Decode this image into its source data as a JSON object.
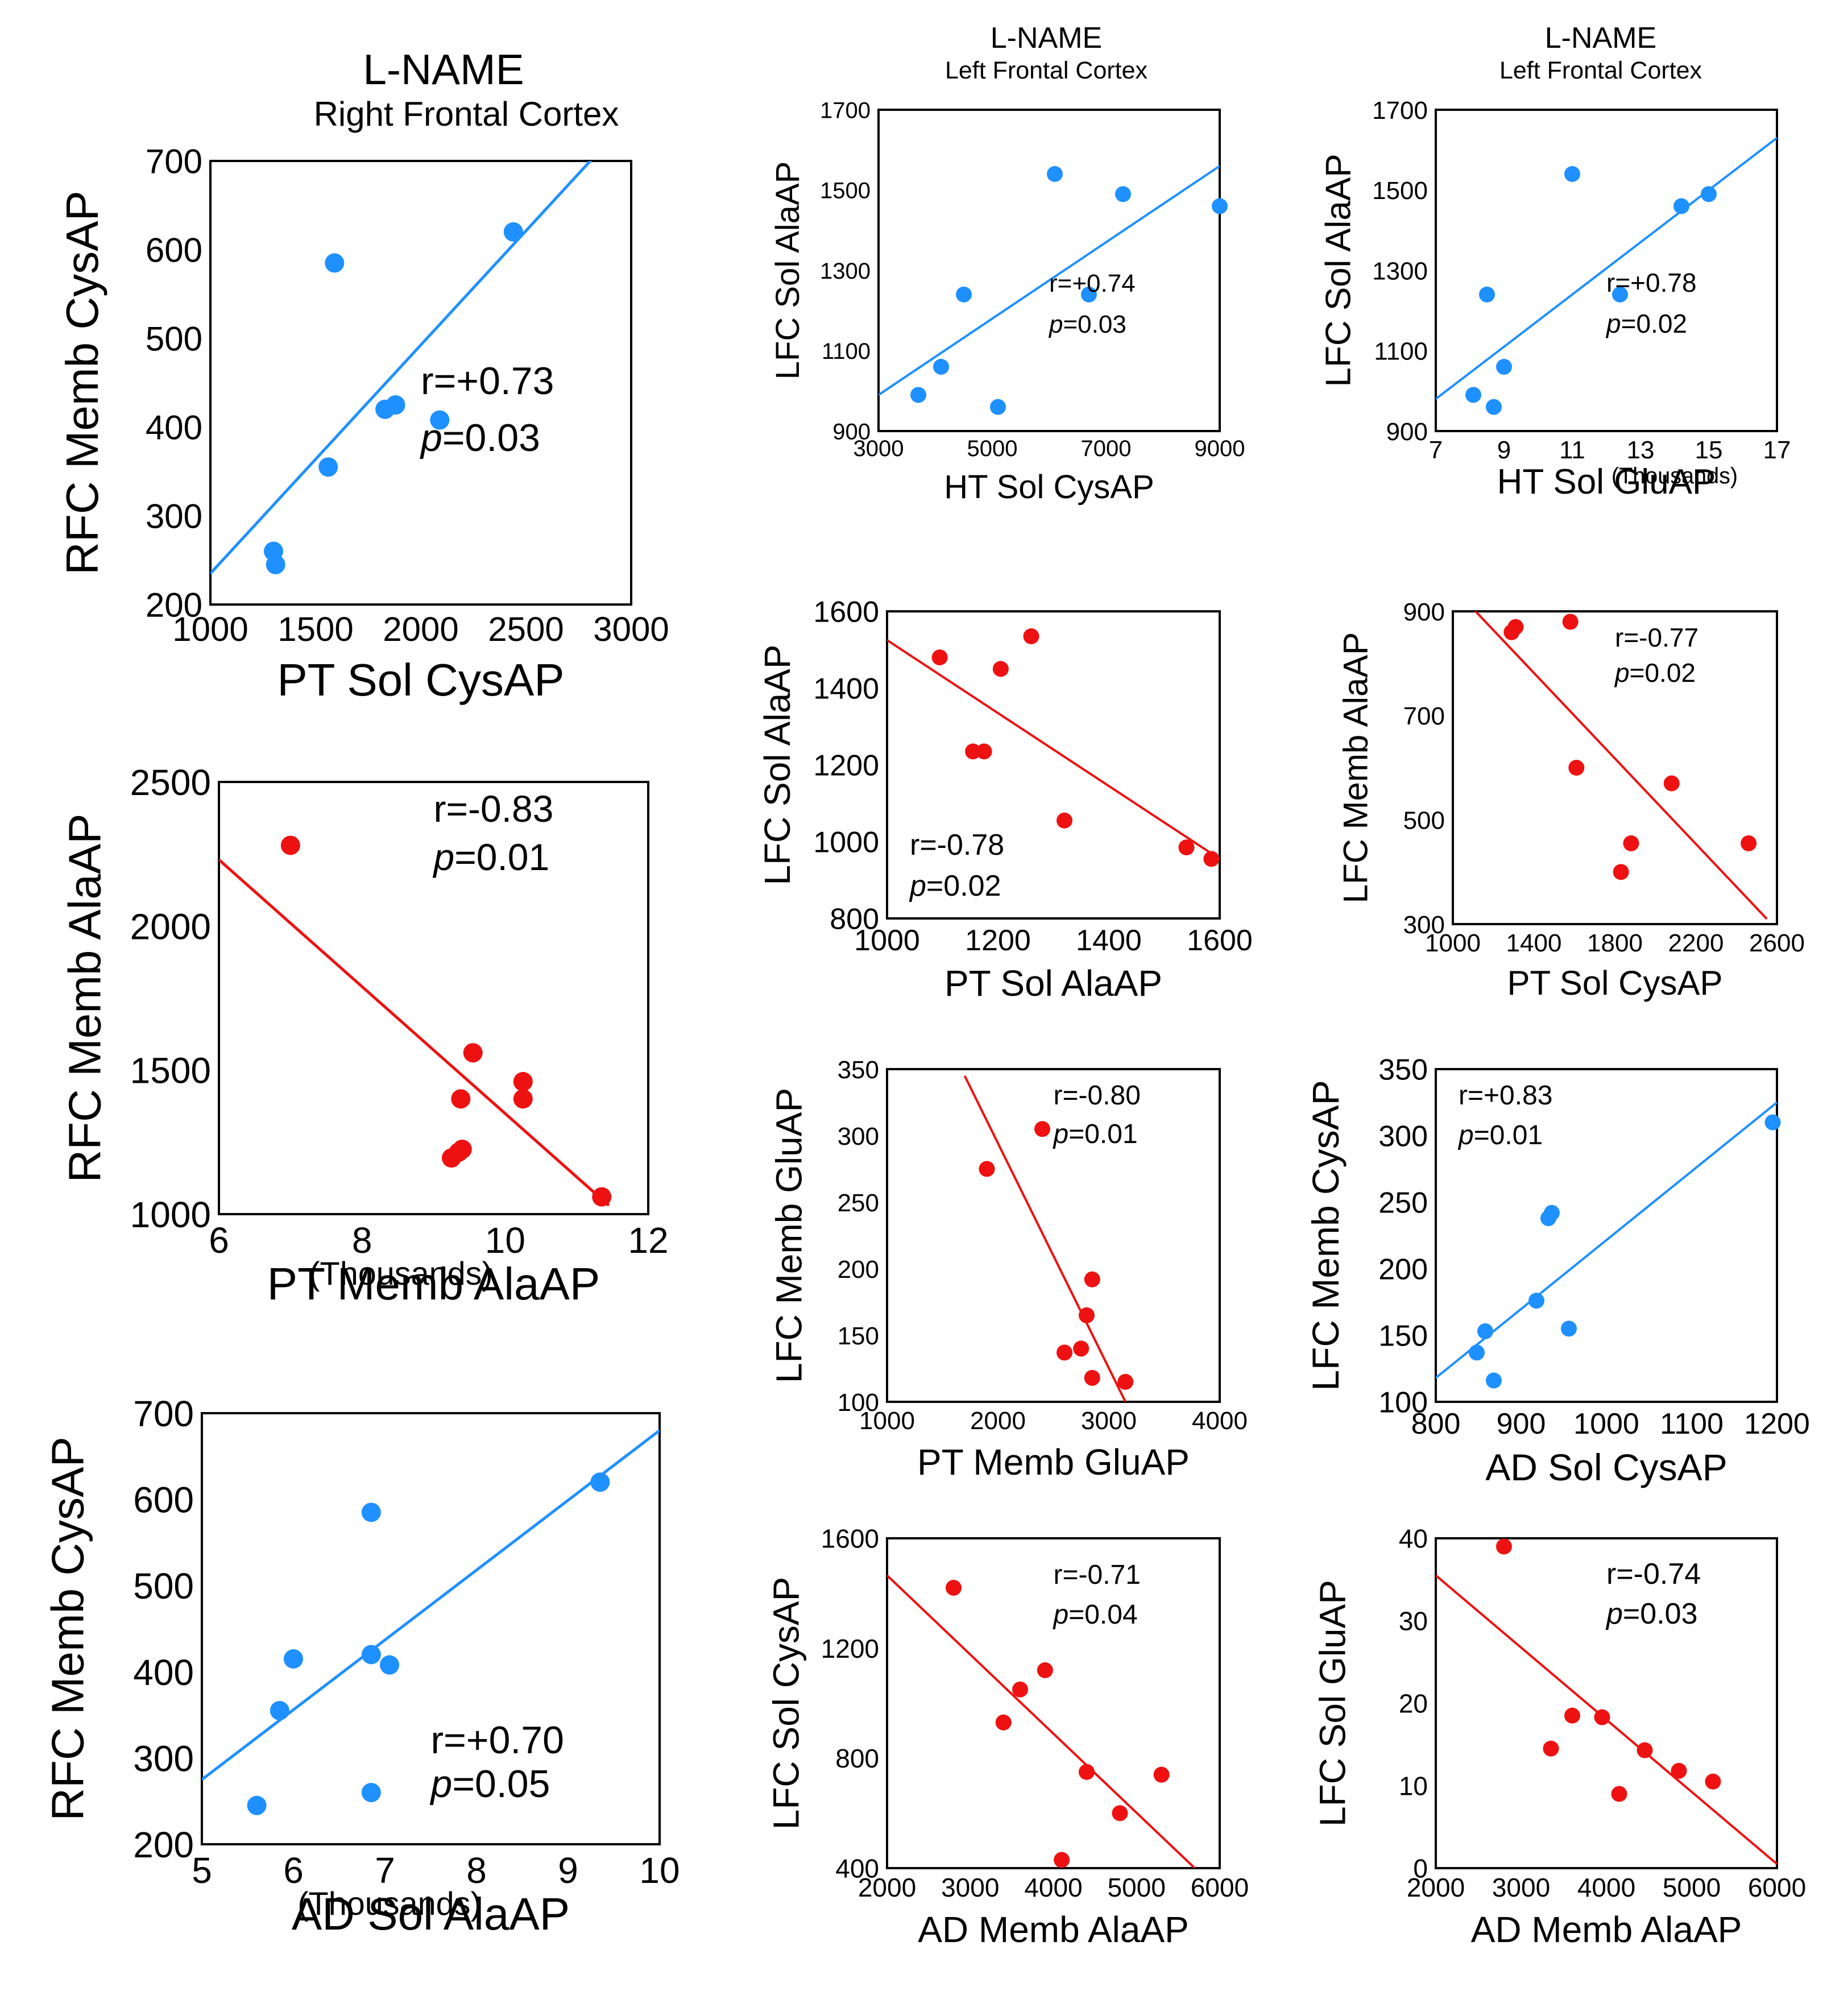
{
  "headers": [
    {
      "title": "L-NAME",
      "subtitle": "Right Frontal Cortex"
    },
    {
      "title": "L-NAME",
      "subtitle": "Left Frontal Cortex"
    },
    {
      "title": "L-NAME",
      "subtitle": "Left Frontal Cortex"
    }
  ],
  "colors": {
    "blue": "#1e90ff",
    "red": "#ee1111"
  },
  "chart_data": [
    {
      "id": "c1",
      "type": "scatter",
      "color": "blue",
      "xlabel": "PT Sol CysAP",
      "ylabel": "RFC Memb CysAP",
      "xnote": "",
      "xlim": [
        1000,
        3000
      ],
      "ylim": [
        200,
        700
      ],
      "xticks": [
        1000,
        1500,
        2000,
        2500,
        3000
      ],
      "xticklabels": [
        "1000",
        "1500",
        "2000",
        "2500",
        "3000"
      ],
      "yticks": [
        200,
        300,
        400,
        500,
        600,
        700
      ],
      "yticklabels": [
        "200",
        "300",
        "400",
        "500",
        "600",
        "700"
      ],
      "points": [
        [
          1300,
          260
        ],
        [
          1310,
          245
        ],
        [
          1560,
          355
        ],
        [
          1590,
          585
        ],
        [
          1830,
          420
        ],
        [
          1880,
          425
        ],
        [
          2090,
          408
        ],
        [
          2440,
          620
        ]
      ],
      "fit": [
        [
          1000,
          235
        ],
        [
          3000,
          750
        ]
      ],
      "stat_r": "r=+0.73",
      "stat_p_sym": "p",
      "stat_p_val": "=0.03"
    },
    {
      "id": "c2",
      "type": "scatter",
      "color": "blue",
      "xlabel": "HT Sol CysAP",
      "ylabel": "LFC Sol AlaAP",
      "xnote": "",
      "xlim": [
        3000,
        9000
      ],
      "ylim": [
        900,
        1700
      ],
      "xticks": [
        3000,
        5000,
        7000,
        9000
      ],
      "xticklabels": [
        "3000",
        "5000",
        "7000",
        "9000"
      ],
      "yticks": [
        900,
        1100,
        1300,
        1500,
        1700
      ],
      "yticklabels": [
        "900",
        "1100",
        "1300",
        "1500",
        "1700"
      ],
      "points": [
        [
          3700,
          990
        ],
        [
          4100,
          1060
        ],
        [
          4500,
          1240
        ],
        [
          5100,
          960
        ],
        [
          6100,
          1540
        ],
        [
          6700,
          1240
        ],
        [
          7300,
          1490
        ],
        [
          9000,
          1460
        ]
      ],
      "fit": [
        [
          3000,
          990
        ],
        [
          9000,
          1560
        ]
      ],
      "stat_r": "r=+0.74",
      "stat_p_sym": "p",
      "stat_p_val": "=0.03"
    },
    {
      "id": "c3",
      "type": "scatter",
      "color": "blue",
      "xlabel": "HT Sol GluAP",
      "ylabel": "LFC Sol AlaAP",
      "xnote": "(Thousands)",
      "xlim": [
        7,
        17
      ],
      "ylim": [
        900,
        1700
      ],
      "xticks": [
        7,
        9,
        11,
        13,
        15,
        17
      ],
      "xticklabels": [
        "7",
        "9",
        "11",
        "13",
        "15",
        "17"
      ],
      "yticks": [
        900,
        1100,
        1300,
        1500,
        1700
      ],
      "yticklabels": [
        "900",
        "1100",
        "1300",
        "1500",
        "1700"
      ],
      "points": [
        [
          8.1,
          990
        ],
        [
          8.5,
          1240
        ],
        [
          8.7,
          960
        ],
        [
          9.0,
          1060
        ],
        [
          11.0,
          1540
        ],
        [
          12.4,
          1240
        ],
        [
          14.2,
          1460
        ],
        [
          15.0,
          1490
        ]
      ],
      "fit": [
        [
          7,
          980
        ],
        [
          17,
          1630
        ]
      ],
      "stat_r": "r=+0.78",
      "stat_p_sym": "p",
      "stat_p_val": "=0.02"
    },
    {
      "id": "c4",
      "type": "scatter",
      "color": "red",
      "xlabel": "PT Sol AlaAP",
      "ylabel": "LFC Sol AlaAP",
      "xnote": "",
      "xlim": [
        1000,
        1600
      ],
      "ylim": [
        800,
        1600
      ],
      "xticks": [
        1000,
        1200,
        1400,
        1600
      ],
      "xticklabels": [
        "1000",
        "1200",
        "1400",
        "1600"
      ],
      "yticks": [
        800,
        1000,
        1200,
        1400,
        1600
      ],
      "yticklabels": [
        "800",
        "1000",
        "1200",
        "1400",
        "1600"
      ],
      "points": [
        [
          1095,
          1480
        ],
        [
          1155,
          1235
        ],
        [
          1175,
          1235
        ],
        [
          1205,
          1450
        ],
        [
          1260,
          1535
        ],
        [
          1320,
          1055
        ],
        [
          1540,
          985
        ],
        [
          1585,
          955
        ]
      ],
      "fit": [
        [
          1000,
          1525
        ],
        [
          1600,
          955
        ]
      ],
      "stat_r": "r=-0.78",
      "stat_p_sym": "p",
      "stat_p_val": "=0.02"
    },
    {
      "id": "c5",
      "type": "scatter",
      "color": "red",
      "xlabel": "PT Sol CysAP",
      "ylabel": "LFC Memb AlaAP",
      "xnote": "",
      "xlim": [
        1000,
        2600
      ],
      "ylim": [
        300,
        900
      ],
      "xticks": [
        1000,
        1400,
        1800,
        2200,
        2600
      ],
      "xticklabels": [
        "1000",
        "1400",
        "1800",
        "2200",
        "2600"
      ],
      "yticks": [
        300,
        500,
        700,
        900
      ],
      "yticklabels": [
        "300",
        "500",
        "700",
        "900"
      ],
      "points": [
        [
          1290,
          860
        ],
        [
          1310,
          870
        ],
        [
          1580,
          880
        ],
        [
          1610,
          600
        ],
        [
          1830,
          400
        ],
        [
          1880,
          455
        ],
        [
          2080,
          570
        ],
        [
          2460,
          455
        ]
      ],
      "fit": [
        [
          1100,
          905
        ],
        [
          2550,
          310
        ]
      ],
      "stat_r": "r=-0.77",
      "stat_p_sym": "p",
      "stat_p_val": "=0.02"
    },
    {
      "id": "c6",
      "type": "scatter",
      "color": "red",
      "xlabel": "PT Memb GluAP",
      "ylabel": "LFC Memb GluAP",
      "xnote": "",
      "xlim": [
        1000,
        4000
      ],
      "ylim": [
        100,
        350
      ],
      "xticks": [
        1000,
        2000,
        3000,
        4000
      ],
      "xticklabels": [
        "1000",
        "2000",
        "3000",
        "4000"
      ],
      "yticks": [
        100,
        150,
        200,
        250,
        300,
        350
      ],
      "yticklabels": [
        "100",
        "150",
        "200",
        "250",
        "300",
        "350"
      ],
      "points": [
        [
          1900,
          275
        ],
        [
          2400,
          305
        ],
        [
          2600,
          137
        ],
        [
          2750,
          140
        ],
        [
          2800,
          165
        ],
        [
          2850,
          192
        ],
        [
          2850,
          118
        ],
        [
          3150,
          115
        ]
      ],
      "fit": [
        [
          1700,
          345
        ],
        [
          3150,
          100
        ]
      ],
      "stat_r": "r=-0.80",
      "stat_p_sym": "p",
      "stat_p_val": "=0.01"
    },
    {
      "id": "c7",
      "type": "scatter",
      "color": "blue",
      "xlabel": "AD Sol CysAP",
      "ylabel": "LFC Memb CysAP",
      "xnote": "",
      "xlim": [
        800,
        1200
      ],
      "ylim": [
        100,
        350
      ],
      "xticks": [
        800,
        900,
        1000,
        1100,
        1200
      ],
      "xticklabels": [
        "800",
        "900",
        "1000",
        "1100",
        "1200"
      ],
      "yticks": [
        100,
        150,
        200,
        250,
        300,
        350
      ],
      "yticklabels": [
        "100",
        "150",
        "200",
        "250",
        "300",
        "350"
      ],
      "points": [
        [
          848,
          137
        ],
        [
          858,
          153
        ],
        [
          868,
          116
        ],
        [
          918,
          176
        ],
        [
          932,
          238
        ],
        [
          936,
          242
        ],
        [
          956,
          155
        ],
        [
          1195,
          310
        ]
      ],
      "fit": [
        [
          800,
          118
        ],
        [
          1200,
          325
        ]
      ],
      "stat_r": "r=+0.83",
      "stat_p_sym": "p",
      "stat_p_val": "=0.01"
    },
    {
      "id": "c8",
      "type": "scatter",
      "color": "red",
      "xlabel": "PT Memb AlaAP",
      "ylabel": "RFC Memb AlaAP",
      "xnote": "(Thousands)",
      "xlim": [
        6,
        12
      ],
      "ylim": [
        1000,
        2500
      ],
      "xticks": [
        6,
        8,
        10,
        12
      ],
      "xticklabels": [
        "6",
        "8",
        "10",
        "12"
      ],
      "yticks": [
        1000,
        1500,
        2000,
        2500
      ],
      "yticklabels": [
        "1000",
        "1500",
        "2000",
        "2500"
      ],
      "points": [
        [
          7.0,
          2280
        ],
        [
          9.25,
          1195
        ],
        [
          9.35,
          1215
        ],
        [
          9.4,
          1225
        ],
        [
          9.38,
          1400
        ],
        [
          9.55,
          1560
        ],
        [
          10.25,
          1460
        ],
        [
          10.25,
          1400
        ],
        [
          11.35,
          1060
        ]
      ],
      "fit": [
        [
          6,
          2230
        ],
        [
          11.45,
          1030
        ]
      ],
      "stat_r": "r=-0.83",
      "stat_p_sym": "p",
      "stat_p_val": "=0.01"
    },
    {
      "id": "c9",
      "type": "scatter",
      "color": "blue",
      "xlabel": "AD Sol AlaAP",
      "ylabel": "RFC Memb CysAP",
      "xnote": "(Thousands)",
      "xlim": [
        5,
        10
      ],
      "ylim": [
        200,
        700
      ],
      "xticks": [
        5,
        6,
        7,
        8,
        9,
        10
      ],
      "xticklabels": [
        "5",
        "6",
        "7",
        "8",
        "9",
        "10"
      ],
      "yticks": [
        200,
        300,
        400,
        500,
        600,
        700
      ],
      "yticklabels": [
        "200",
        "300",
        "400",
        "500",
        "600",
        "700"
      ],
      "points": [
        [
          5.6,
          245
        ],
        [
          5.85,
          355
        ],
        [
          6.0,
          415
        ],
        [
          6.85,
          585
        ],
        [
          6.85,
          420
        ],
        [
          6.85,
          260
        ],
        [
          7.05,
          408
        ],
        [
          9.35,
          620
        ]
      ],
      "fit": [
        [
          5,
          275
        ],
        [
          10,
          680
        ]
      ],
      "stat_r": "r=+0.70",
      "stat_p_sym": "p",
      "stat_p_val": "=0.05"
    },
    {
      "id": "c10",
      "type": "scatter",
      "color": "red",
      "xlabel": "AD Memb AlaAP",
      "ylabel": "LFC Sol CysAP",
      "xnote": "",
      "xlim": [
        2000,
        6000
      ],
      "ylim": [
        400,
        1600
      ],
      "xticks": [
        2000,
        3000,
        4000,
        5000,
        6000
      ],
      "xticklabels": [
        "2000",
        "3000",
        "4000",
        "5000",
        "6000"
      ],
      "yticks": [
        400,
        800,
        1200,
        1600
      ],
      "yticklabels": [
        "400",
        "800",
        "1200",
        "1600"
      ],
      "points": [
        [
          2800,
          1420
        ],
        [
          3400,
          930
        ],
        [
          3600,
          1050
        ],
        [
          3900,
          1120
        ],
        [
          4100,
          430
        ],
        [
          4400,
          750
        ],
        [
          4800,
          600
        ],
        [
          5300,
          740
        ]
      ],
      "fit": [
        [
          2000,
          1465
        ],
        [
          5700,
          400
        ]
      ],
      "stat_r": "r=-0.71",
      "stat_p_sym": "p",
      "stat_p_val": "=0.04"
    },
    {
      "id": "c11",
      "type": "scatter",
      "color": "red",
      "xlabel": "AD Memb AlaAP",
      "ylabel": "LFC Sol GluAP",
      "xnote": "",
      "xlim": [
        2000,
        6000
      ],
      "ylim": [
        0,
        40
      ],
      "xticks": [
        2000,
        3000,
        4000,
        5000,
        6000
      ],
      "xticklabels": [
        "2000",
        "3000",
        "4000",
        "5000",
        "6000"
      ],
      "yticks": [
        0,
        10,
        20,
        30,
        40
      ],
      "yticklabels": [
        "0",
        "10",
        "20",
        "30",
        "40"
      ],
      "points": [
        [
          2800,
          39
        ],
        [
          3350,
          14.5
        ],
        [
          3600,
          18.5
        ],
        [
          3950,
          18.3
        ],
        [
          4150,
          9.0
        ],
        [
          4450,
          14.3
        ],
        [
          4850,
          11.8
        ],
        [
          5250,
          10.5
        ]
      ],
      "fit": [
        [
          2000,
          35.5
        ],
        [
          6000,
          0.5
        ]
      ],
      "stat_r": "r=-0.74",
      "stat_p_sym": "p",
      "stat_p_val": "=0.03"
    }
  ]
}
